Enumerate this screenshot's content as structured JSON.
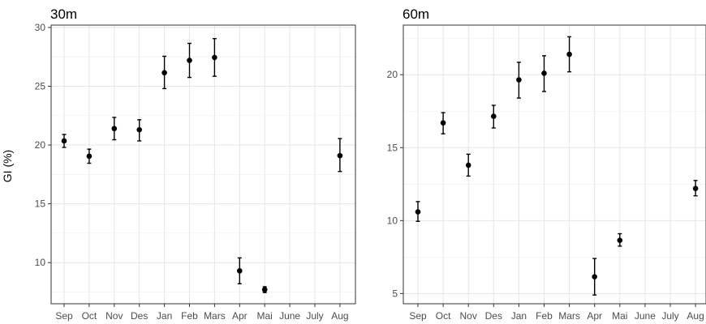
{
  "figure": {
    "ylabel": "GI (%)"
  },
  "chart_data": [
    {
      "type": "scatter",
      "title": "30m",
      "xlabel": "",
      "ylabel": "GI (%)",
      "categories": [
        "Sep",
        "Oct",
        "Nov",
        "Des",
        "Jan",
        "Feb",
        "Mars",
        "Apr",
        "Mai",
        "June",
        "July",
        "Aug"
      ],
      "y": [
        20.35,
        19.05,
        21.4,
        21.3,
        26.15,
        27.2,
        27.45,
        9.3,
        7.7,
        null,
        null,
        19.1
      ],
      "ymin": [
        19.8,
        18.45,
        20.45,
        20.35,
        24.8,
        25.75,
        25.85,
        8.2,
        7.45,
        null,
        null,
        17.75
      ],
      "ymax": [
        20.9,
        19.65,
        22.35,
        22.15,
        27.55,
        28.65,
        29.05,
        10.4,
        7.95,
        null,
        null,
        20.55
      ],
      "yticks": [
        10,
        15,
        20,
        25,
        30
      ],
      "ylim": [
        6.5,
        30.2
      ],
      "grid": true,
      "legend": "none"
    },
    {
      "type": "scatter",
      "title": "60m",
      "xlabel": "",
      "ylabel": "",
      "categories": [
        "Sep",
        "Oct",
        "Nov",
        "Des",
        "Jan",
        "Feb",
        "Mars",
        "Apr",
        "Mai",
        "June",
        "July",
        "Aug"
      ],
      "y": [
        10.6,
        16.7,
        13.8,
        17.15,
        19.65,
        20.1,
        21.4,
        6.15,
        8.65,
        null,
        null,
        12.2
      ],
      "ymin": [
        9.95,
        15.95,
        13.05,
        16.35,
        18.4,
        18.85,
        20.2,
        4.9,
        8.25,
        null,
        null,
        11.7
      ],
      "ymax": [
        11.3,
        17.4,
        14.55,
        17.9,
        20.85,
        21.3,
        22.6,
        7.4,
        9.1,
        null,
        null,
        12.75
      ],
      "yticks": [
        5,
        10,
        15,
        20
      ],
      "ylim": [
        4.3,
        23.4
      ],
      "grid": true,
      "legend": "none"
    }
  ]
}
